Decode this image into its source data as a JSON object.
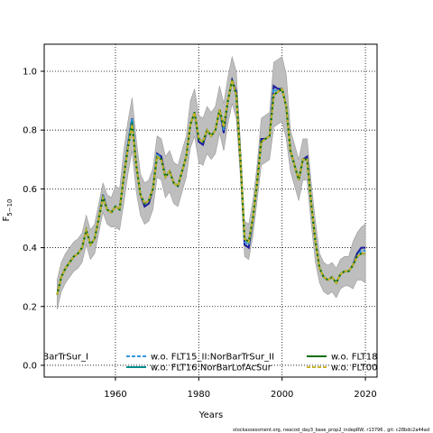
{
  "chart_data": {
    "type": "line",
    "ylabel": {
      "main": "F",
      "sub": "5−10"
    },
    "xlabel": "Years",
    "footer": "stockassessment.org, neacod_day3_base_prop2_indepRW, r13796 , git: c28bdc2a44ad",
    "xlim": [
      1942.9,
      2022.8
    ],
    "ylim": [
      -0.04,
      1.092
    ],
    "xticks": [
      1960,
      1980,
      2000,
      2020
    ],
    "yticks": [
      {
        "value": 0,
        "label": "0.0"
      },
      {
        "value": 0.2,
        "label": "0.2"
      },
      {
        "value": 0.4,
        "label": "0.4"
      },
      {
        "value": 0.6,
        "label": "0.6"
      },
      {
        "value": 0.8,
        "label": "0.8"
      },
      {
        "value": 1,
        "label": "1.0"
      }
    ],
    "grid": true,
    "x": [
      1946,
      1947,
      1948,
      1949,
      1950,
      1951,
      1952,
      1953,
      1954,
      1955,
      1956,
      1957,
      1958,
      1959,
      1960,
      1961,
      1962,
      1963,
      1964,
      1965,
      1966,
      1967,
      1968,
      1969,
      1970,
      1971,
      1972,
      1973,
      1974,
      1975,
      1976,
      1977,
      1978,
      1979,
      1980,
      1981,
      1982,
      1983,
      1984,
      1985,
      1986,
      1987,
      1988,
      1989,
      1990,
      1991,
      1992,
      1993,
      1994,
      1995,
      1996,
      1997,
      1998,
      1999,
      2000,
      2001,
      2002,
      2003,
      2004,
      2005,
      2006,
      2007,
      2008,
      2009,
      2010,
      2011,
      2012,
      2013,
      2014,
      2015,
      2016,
      2017,
      2018,
      2019,
      2020
    ],
    "band": {
      "color": "#bebebe",
      "upper": [
        0.29,
        0.35,
        0.38,
        0.4,
        0.42,
        0.43,
        0.45,
        0.51,
        0.46,
        0.48,
        0.55,
        0.62,
        0.58,
        0.57,
        0.61,
        0.6,
        0.73,
        0.83,
        0.91,
        0.77,
        0.65,
        0.62,
        0.63,
        0.67,
        0.78,
        0.77,
        0.71,
        0.73,
        0.69,
        0.68,
        0.73,
        0.78,
        0.9,
        0.94,
        0.85,
        0.84,
        0.88,
        0.86,
        0.88,
        0.95,
        0.89,
        0.98,
        1.05,
        1.0,
        0.76,
        0.49,
        0.48,
        0.56,
        0.68,
        0.84,
        0.85,
        0.86,
        1.03,
        1.04,
        1.05,
        0.99,
        0.8,
        0.75,
        0.7,
        0.77,
        0.77,
        0.62,
        0.49,
        0.38,
        0.35,
        0.34,
        0.35,
        0.33,
        0.36,
        0.37,
        0.37,
        0.42,
        0.45,
        0.47,
        0.48
      ],
      "lower": [
        0.19,
        0.25,
        0.28,
        0.3,
        0.32,
        0.33,
        0.35,
        0.41,
        0.36,
        0.38,
        0.45,
        0.52,
        0.48,
        0.47,
        0.47,
        0.46,
        0.55,
        0.65,
        0.73,
        0.59,
        0.51,
        0.48,
        0.49,
        0.53,
        0.64,
        0.63,
        0.57,
        0.59,
        0.55,
        0.54,
        0.59,
        0.64,
        0.74,
        0.78,
        0.69,
        0.68,
        0.72,
        0.7,
        0.72,
        0.79,
        0.73,
        0.82,
        0.89,
        0.84,
        0.64,
        0.37,
        0.36,
        0.44,
        0.56,
        0.68,
        0.69,
        0.7,
        0.81,
        0.82,
        0.83,
        0.77,
        0.66,
        0.61,
        0.56,
        0.63,
        0.63,
        0.48,
        0.35,
        0.28,
        0.25,
        0.24,
        0.25,
        0.23,
        0.26,
        0.27,
        0.27,
        0.26,
        0.29,
        0.29,
        0.28
      ]
    },
    "series": [
      {
        "name": "BarTrSur_I",
        "color": "#1a1a9a",
        "dash": false,
        "values": [
          0.24,
          0.3,
          0.33,
          0.35,
          0.37,
          0.38,
          0.4,
          0.46,
          0.41,
          0.43,
          0.5,
          0.58,
          0.53,
          0.52,
          0.54,
          0.53,
          0.64,
          0.75,
          0.84,
          0.68,
          0.58,
          0.54,
          0.55,
          0.6,
          0.72,
          0.71,
          0.64,
          0.66,
          0.62,
          0.61,
          0.66,
          0.71,
          0.82,
          0.86,
          0.76,
          0.75,
          0.8,
          0.78,
          0.8,
          0.87,
          0.79,
          0.9,
          0.97,
          0.93,
          0.7,
          0.41,
          0.4,
          0.5,
          0.62,
          0.77,
          0.77,
          0.78,
          0.95,
          0.94,
          0.94,
          0.88,
          0.73,
          0.68,
          0.63,
          0.7,
          0.71,
          0.55,
          0.42,
          0.33,
          0.3,
          0.29,
          0.3,
          0.28,
          0.31,
          0.32,
          0.32,
          0.34,
          0.38,
          0.4,
          0.4
        ]
      },
      {
        "name": "w.o. FLT15_II:NorBarTrSur_II",
        "color": "#3399dd",
        "dash": true,
        "values": [
          0.24,
          0.3,
          0.33,
          0.35,
          0.37,
          0.38,
          0.4,
          0.46,
          0.41,
          0.43,
          0.5,
          0.58,
          0.53,
          0.52,
          0.54,
          0.53,
          0.64,
          0.75,
          0.84,
          0.68,
          0.58,
          0.55,
          0.56,
          0.6,
          0.72,
          0.7,
          0.64,
          0.66,
          0.62,
          0.61,
          0.66,
          0.71,
          0.82,
          0.86,
          0.77,
          0.76,
          0.8,
          0.78,
          0.8,
          0.87,
          0.8,
          0.9,
          0.97,
          0.92,
          0.7,
          0.42,
          0.41,
          0.5,
          0.62,
          0.76,
          0.77,
          0.78,
          0.94,
          0.93,
          0.94,
          0.88,
          0.73,
          0.68,
          0.63,
          0.7,
          0.7,
          0.55,
          0.42,
          0.33,
          0.3,
          0.29,
          0.3,
          0.28,
          0.31,
          0.32,
          0.32,
          0.34,
          0.37,
          0.39,
          0.39
        ]
      },
      {
        "name": "w.o. FLT16:NorBarLofAcSur",
        "color": "#008b8b",
        "dash": false,
        "values": [
          0.24,
          0.3,
          0.33,
          0.35,
          0.37,
          0.38,
          0.4,
          0.46,
          0.41,
          0.43,
          0.5,
          0.57,
          0.53,
          0.52,
          0.54,
          0.53,
          0.64,
          0.74,
          0.83,
          0.68,
          0.58,
          0.55,
          0.56,
          0.6,
          0.71,
          0.7,
          0.64,
          0.66,
          0.62,
          0.61,
          0.66,
          0.71,
          0.82,
          0.86,
          0.77,
          0.76,
          0.8,
          0.78,
          0.8,
          0.87,
          0.81,
          0.9,
          0.97,
          0.92,
          0.7,
          0.43,
          0.42,
          0.5,
          0.62,
          0.76,
          0.77,
          0.78,
          0.92,
          0.93,
          0.94,
          0.88,
          0.73,
          0.68,
          0.63,
          0.7,
          0.7,
          0.55,
          0.42,
          0.33,
          0.3,
          0.29,
          0.3,
          0.28,
          0.31,
          0.32,
          0.32,
          0.34,
          0.37,
          0.38,
          0.38
        ]
      },
      {
        "name": "w.o. FLT18",
        "color": "#0a6e0a",
        "dash": false,
        "values": [
          0.24,
          0.3,
          0.33,
          0.35,
          0.37,
          0.38,
          0.4,
          0.46,
          0.41,
          0.43,
          0.5,
          0.57,
          0.53,
          0.52,
          0.54,
          0.53,
          0.64,
          0.74,
          0.82,
          0.68,
          0.58,
          0.55,
          0.56,
          0.6,
          0.71,
          0.7,
          0.64,
          0.66,
          0.62,
          0.61,
          0.66,
          0.71,
          0.82,
          0.86,
          0.77,
          0.76,
          0.8,
          0.78,
          0.8,
          0.87,
          0.81,
          0.9,
          0.97,
          0.92,
          0.7,
          0.43,
          0.42,
          0.5,
          0.62,
          0.76,
          0.77,
          0.78,
          0.92,
          0.93,
          0.94,
          0.88,
          0.73,
          0.68,
          0.63,
          0.7,
          0.7,
          0.55,
          0.42,
          0.33,
          0.3,
          0.29,
          0.3,
          0.28,
          0.31,
          0.32,
          0.32,
          0.34,
          0.37,
          0.38,
          0.38
        ]
      },
      {
        "name": "w.o. FLT00",
        "color": "#c8b428",
        "dash": true,
        "values": [
          0.24,
          0.3,
          0.33,
          0.35,
          0.37,
          0.38,
          0.4,
          0.46,
          0.41,
          0.43,
          0.5,
          0.57,
          0.53,
          0.52,
          0.54,
          0.53,
          0.64,
          0.74,
          0.82,
          0.68,
          0.58,
          0.55,
          0.56,
          0.6,
          0.71,
          0.7,
          0.64,
          0.66,
          0.62,
          0.61,
          0.66,
          0.71,
          0.82,
          0.86,
          0.77,
          0.76,
          0.8,
          0.78,
          0.8,
          0.87,
          0.81,
          0.9,
          0.97,
          0.92,
          0.7,
          0.43,
          0.42,
          0.5,
          0.62,
          0.76,
          0.77,
          0.78,
          0.92,
          0.93,
          0.94,
          0.88,
          0.73,
          0.68,
          0.63,
          0.7,
          0.7,
          0.55,
          0.42,
          0.33,
          0.3,
          0.29,
          0.3,
          0.28,
          0.31,
          0.32,
          0.32,
          0.34,
          0.37,
          0.38,
          0.38
        ]
      }
    ]
  }
}
